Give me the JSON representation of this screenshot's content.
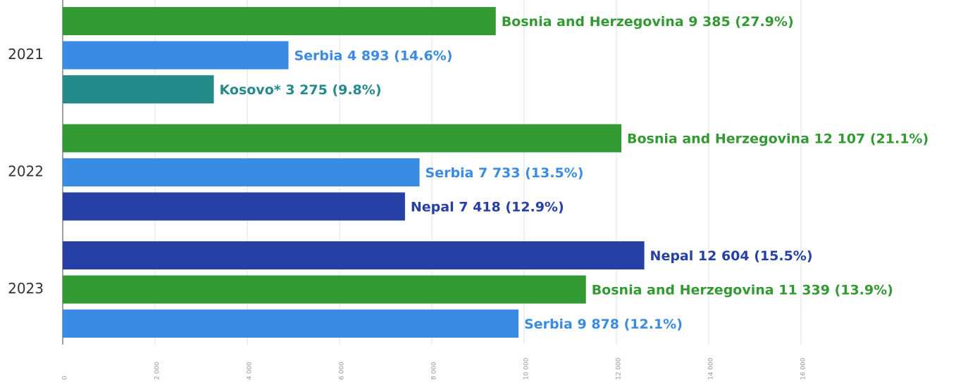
{
  "chart_data": {
    "type": "bar",
    "orientation": "horizontal",
    "categories": [
      "2021",
      "2022",
      "2023"
    ],
    "bars": [
      [
        {
          "name": "Bosnia and Herzegovina",
          "value": 9385,
          "value_label": "9 385",
          "share_label": "(27.9%)",
          "color": "#339933"
        },
        {
          "name": "Serbia",
          "value": 4893,
          "value_label": "4 893",
          "share_label": "(14.6%)",
          "color": "#3a8be3"
        },
        {
          "name": "Kosovo*",
          "value": 3275,
          "value_label": "3 275",
          "share_label": "(9.8%)",
          "color": "#248a8a"
        }
      ],
      [
        {
          "name": "Bosnia and Herzegovina",
          "value": 12107,
          "value_label": "12 107",
          "share_label": "(21.1%)",
          "color": "#339933"
        },
        {
          "name": "Serbia",
          "value": 7733,
          "value_label": "7 733",
          "share_label": "(13.5%)",
          "color": "#3a8be3"
        },
        {
          "name": "Nepal",
          "value": 7418,
          "value_label": "7 418",
          "share_label": "(12.9%)",
          "color": "#2740a5"
        }
      ],
      [
        {
          "name": "Nepal",
          "value": 12604,
          "value_label": "12 604",
          "share_label": "(15.5%)",
          "color": "#2740a5"
        },
        {
          "name": "Bosnia and Herzegovina",
          "value": 11339,
          "value_label": "11 339",
          "share_label": "(13.9%)",
          "color": "#339933"
        },
        {
          "name": "Serbia",
          "value": 9878,
          "value_label": "9 878",
          "share_label": "(12.1%)",
          "color": "#3a8be3"
        }
      ]
    ],
    "xlim": [
      0,
      16000
    ],
    "xticks": [
      0,
      {
        "value": 2000,
        "label": "2 000"
      },
      {
        "value": 4000,
        "label": "4 000"
      },
      {
        "value": 6000,
        "label": "6 000"
      },
      {
        "value": 8000,
        "label": "8 000"
      },
      {
        "value": 10000,
        "label": "10 000"
      },
      {
        "value": 12000,
        "label": "12 000"
      },
      {
        "value": 14000,
        "label": "14 000"
      },
      {
        "value": 16000,
        "label": "16 000"
      }
    ],
    "grid": true
  }
}
